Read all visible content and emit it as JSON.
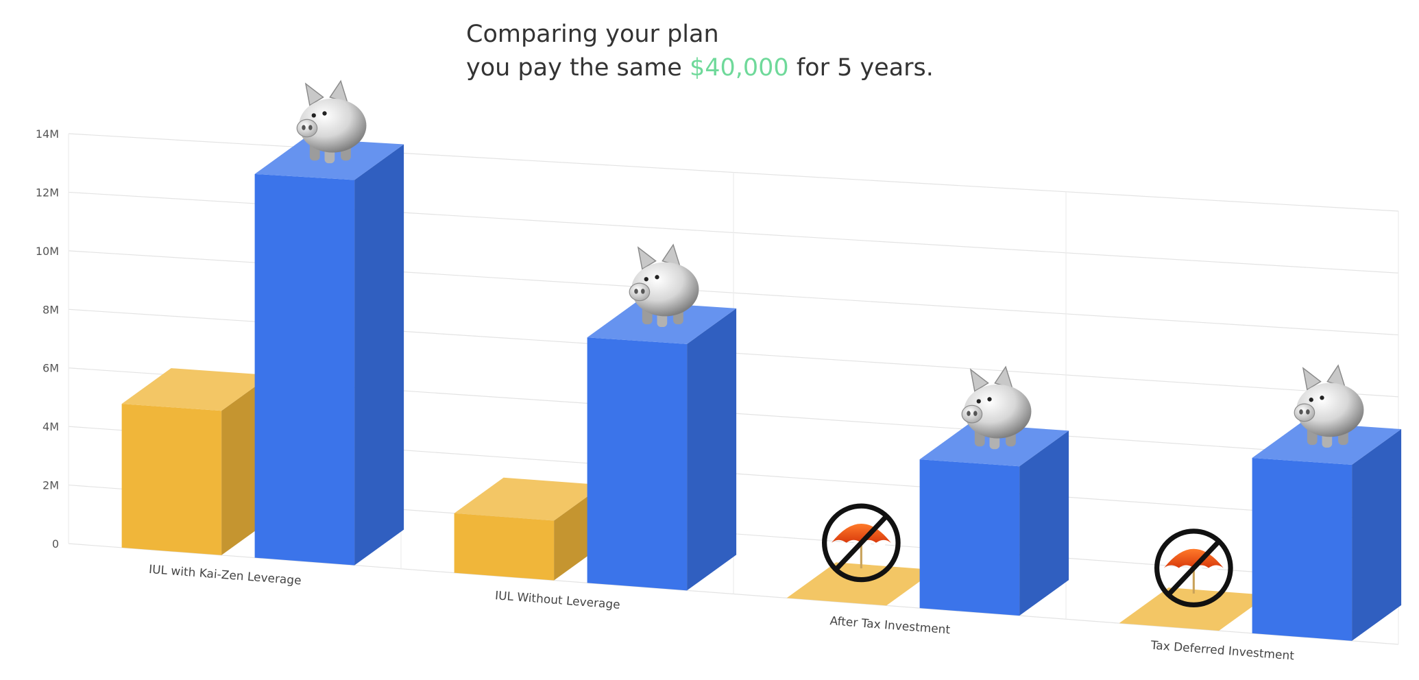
{
  "header": {
    "line1": "Comparing your plan",
    "line2_before": "you pay the same",
    "line2_amount": "$40,000",
    "line2_after": "for 5 years."
  },
  "colors": {
    "accent_green": "#6fd99a",
    "bar_gold": "#f0b63a",
    "bar_blue": "#3b74ea"
  },
  "chart_data": {
    "type": "bar",
    "style": "3d-column",
    "categories": [
      "IUL with Kai-Zen Leverage",
      "IUL Without Leverage",
      "After Tax Investment",
      "Tax Deferred Investment"
    ],
    "series": [
      {
        "color": "#f0b63a",
        "values": [
          4.9,
          2.0,
          0,
          0
        ]
      },
      {
        "color": "#3b74ea",
        "values": [
          13.0,
          8.2,
          4.9,
          5.7
        ]
      }
    ],
    "ylim": [
      0,
      14
    ],
    "yticks": [
      "0",
      "2M",
      "4M",
      "6M",
      "8M",
      "10M",
      "12M",
      "14M"
    ],
    "grid": true,
    "markers": {
      "blue_top": "piggy-bank-icon",
      "gold_zero": "no-umbrella-icon"
    }
  }
}
